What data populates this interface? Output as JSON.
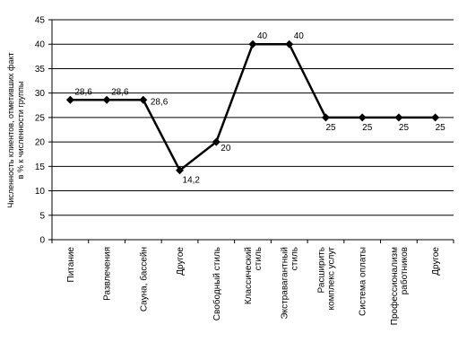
{
  "chart_data": {
    "type": "line",
    "title": "",
    "ylabel": "Численность клиентов, отметивших факт в % к численности группы",
    "ylabel_lines": [
      "Численность клиентов, отметивших факт",
      "в % к численности группы"
    ],
    "xlabel": "",
    "ylim": [
      0,
      45
    ],
    "yticks": [
      0,
      5,
      10,
      15,
      20,
      25,
      30,
      35,
      40,
      45
    ],
    "grid": true,
    "legend": "none",
    "categories": [
      "Питание",
      "Развлечения",
      "Сауна, бассейн",
      "Другое",
      "Свободный стиль",
      "Классический стиль",
      "Экстравагантный стиль",
      "Расширить комплекс услуг",
      "Система оплаты",
      "Профессионализм работников",
      "Другое"
    ],
    "category_lines": [
      [
        "Питание"
      ],
      [
        "Развлечения"
      ],
      [
        "Сауна, бассейн"
      ],
      [
        "Другое"
      ],
      [
        "Свободный стиль"
      ],
      [
        "Классический",
        "стиль"
      ],
      [
        "Экстравагантный",
        "стиль"
      ],
      [
        "Расширить",
        "комплекс услуг"
      ],
      [
        "Система оплаты"
      ],
      [
        "Профессионализм",
        "работников"
      ],
      [
        "Другое"
      ]
    ],
    "values": [
      28.6,
      28.6,
      28.6,
      14.2,
      20,
      40,
      40,
      25,
      25,
      25,
      25
    ],
    "data_labels": [
      "28,6",
      "28,6",
      "28,6",
      "14,2",
      "20",
      "40",
      "40",
      "25",
      "25",
      "25",
      "25"
    ],
    "line_color": "#000000"
  }
}
